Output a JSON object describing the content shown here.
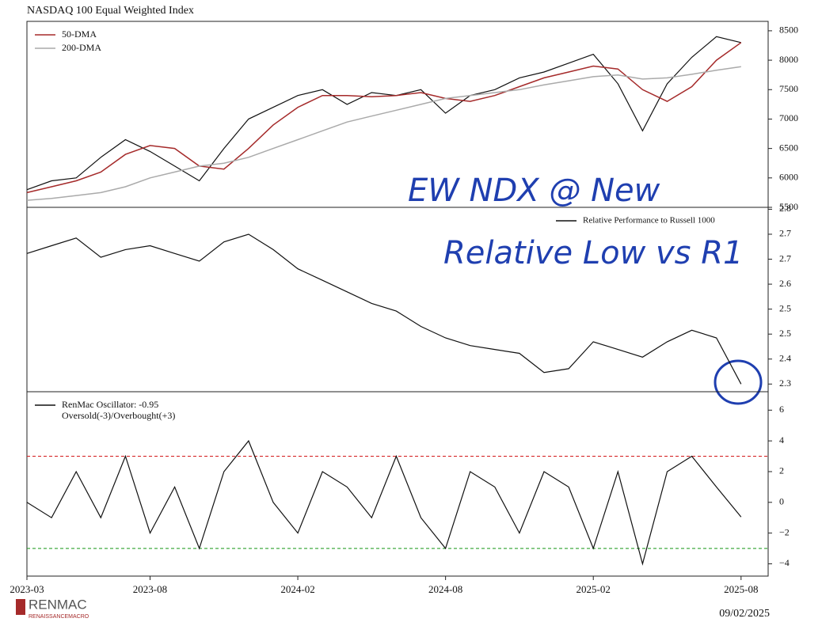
{
  "chart_data": [
    {
      "type": "line",
      "title": "NASDAQ 100 Equal Weighted Index",
      "x": [
        "2023-03",
        "2023-04",
        "2023-05",
        "2023-06",
        "2023-07",
        "2023-08",
        "2023-09",
        "2023-10",
        "2023-11",
        "2023-12",
        "2024-01",
        "2024-02",
        "2024-03",
        "2024-04",
        "2024-05",
        "2024-06",
        "2024-07",
        "2024-08",
        "2024-09",
        "2024-10",
        "2024-11",
        "2024-12",
        "2025-01",
        "2025-02",
        "2025-03",
        "2025-04",
        "2025-05",
        "2025-06",
        "2025-07",
        "2025-08"
      ],
      "series": [
        {
          "color": "#111111",
          "values": [
            5800,
            5950,
            6000,
            6350,
            6650,
            6450,
            6200,
            5950,
            6500,
            7000,
            7200,
            7400,
            7500,
            7250,
            7450,
            7400,
            7500,
            7100,
            7400,
            7500,
            7700,
            7800,
            7950,
            8100,
            7600,
            6800,
            7600,
            8050,
            8400,
            8300
          ]
        },
        {
          "name": "50-DMA",
          "color": "#a52a2a",
          "values": [
            5750,
            5850,
            5950,
            6100,
            6400,
            6550,
            6500,
            6200,
            6150,
            6500,
            6900,
            7200,
            7400,
            7400,
            7380,
            7400,
            7450,
            7350,
            7300,
            7400,
            7550,
            7700,
            7800,
            7900,
            7850,
            7500,
            7300,
            7550,
            8000,
            8300
          ]
        },
        {
          "name": "200-DMA",
          "color": "#aaaaaa",
          "values": [
            5620,
            5650,
            5700,
            5750,
            5850,
            6000,
            6100,
            6200,
            6250,
            6350,
            6500,
            6650,
            6800,
            6950,
            7050,
            7150,
            7250,
            7350,
            7400,
            7450,
            7500,
            7580,
            7650,
            7720,
            7750,
            7680,
            7700,
            7760,
            7830,
            7890
          ]
        }
      ],
      "ylim": [
        5500,
        8660
      ],
      "yticks": [
        5500,
        6000,
        6500,
        7000,
        7500,
        8000,
        8500
      ],
      "legend": "upper left",
      "annotations": [
        "EW NDX @ New"
      ]
    },
    {
      "type": "line",
      "x": [
        "2023-03",
        "2023-04",
        "2023-05",
        "2023-06",
        "2023-07",
        "2023-08",
        "2023-09",
        "2023-10",
        "2023-11",
        "2023-12",
        "2024-01",
        "2024-02",
        "2024-03",
        "2024-04",
        "2024-05",
        "2024-06",
        "2024-07",
        "2024-08",
        "2024-09",
        "2024-10",
        "2024-11",
        "2024-12",
        "2025-01",
        "2025-02",
        "2025-03",
        "2025-04",
        "2025-05",
        "2025-06",
        "2025-07",
        "2025-08"
      ],
      "series": [
        {
          "name": "Relative Performance to Russell 1000",
          "color": "#111111",
          "values": [
            2.67,
            2.69,
            2.71,
            2.66,
            2.68,
            2.69,
            2.67,
            2.65,
            2.7,
            2.72,
            2.68,
            2.63,
            2.6,
            2.57,
            2.54,
            2.52,
            2.48,
            2.45,
            2.43,
            2.42,
            2.41,
            2.36,
            2.37,
            2.44,
            2.42,
            2.4,
            2.44,
            2.47,
            2.45,
            2.33
          ]
        }
      ],
      "ylim": [
        2.31,
        2.79
      ],
      "yticks": [
        {
          "value": 2.33,
          "label": "2.3"
        },
        {
          "value": 2.395,
          "label": "2.4"
        },
        {
          "value": 2.46,
          "label": "2.5"
        },
        {
          "value": 2.525,
          "label": "2.5"
        },
        {
          "value": 2.59,
          "label": "2.6"
        },
        {
          "value": 2.655,
          "label": "2.7"
        },
        {
          "value": 2.72,
          "label": "2.7"
        },
        {
          "value": 2.785,
          "label": "2.8"
        }
      ],
      "legend": "upper right",
      "annotations": [
        "Relative Low vs R1"
      ]
    },
    {
      "type": "line",
      "x": [
        "2023-03",
        "2023-04",
        "2023-05",
        "2023-06",
        "2023-07",
        "2023-08",
        "2023-09",
        "2023-10",
        "2023-11",
        "2023-12",
        "2024-01",
        "2024-02",
        "2024-03",
        "2024-04",
        "2024-05",
        "2024-06",
        "2024-07",
        "2024-08",
        "2024-09",
        "2024-10",
        "2024-11",
        "2024-12",
        "2025-01",
        "2025-02",
        "2025-03",
        "2025-04",
        "2025-05",
        "2025-06",
        "2025-07",
        "2025-08"
      ],
      "series": [
        {
          "name": "RenMac Oscillator: -0.95",
          "color": "#111111",
          "values": [
            0,
            -1,
            2,
            -1,
            3,
            -2,
            1,
            -3,
            2,
            4,
            0,
            -2,
            2,
            1,
            -1,
            3,
            -1,
            -3,
            2,
            1,
            -2,
            2,
            1,
            -3,
            2,
            -4,
            2,
            3,
            1,
            -0.95
          ]
        }
      ],
      "legend_note": "Oversold(-3)/Overbought(+3)",
      "hlines": [
        {
          "value": 3,
          "color": "#d62728"
        },
        {
          "value": -3,
          "color": "#2ca02c"
        }
      ],
      "ylim": [
        -4.8,
        7.2
      ],
      "yticks": [
        {
          "value": -4,
          "label": "−4"
        },
        {
          "value": -2,
          "label": "−2"
        },
        0,
        2,
        4,
        6
      ],
      "xticks": [
        "2023-03",
        "2023-08",
        "2024-02",
        "2024-08",
        "2025-02",
        "2025-08"
      ],
      "legend": "upper left"
    }
  ],
  "footer": {
    "logo": "RENMAC",
    "logo_subtitle": "RENAISSANCEMACRO",
    "date": "09/02/2025"
  }
}
